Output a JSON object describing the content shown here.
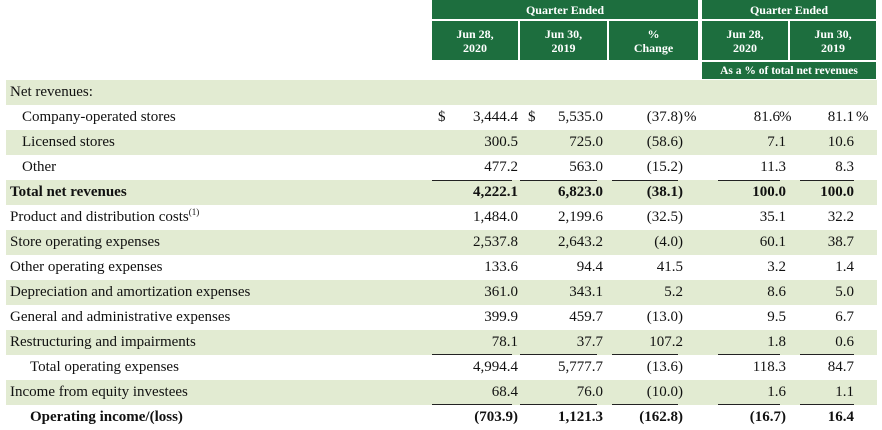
{
  "header": {
    "group1_title": "Quarter Ended",
    "group2_title": "Quarter Ended",
    "col1": [
      "Jun 28,",
      "2020"
    ],
    "col2": [
      "Jun 30,",
      "2019"
    ],
    "col3": [
      "%",
      "Change"
    ],
    "col4": [
      "Jun 28,",
      "2020"
    ],
    "col5": [
      "Jun 30,",
      "2019"
    ],
    "subheader": "As a % of total net revenues"
  },
  "rows": [
    {
      "label": "Net revenues:",
      "v1": "",
      "v2": "",
      "v3": "",
      "v4": "",
      "v5": ""
    },
    {
      "label": "Company-operated stores",
      "v1": "3,444.4",
      "v2": "5,535.0",
      "v3": "(37.8)",
      "v4": "81.6",
      "v5": "81.1",
      "dollar": "$",
      "pct": "%"
    },
    {
      "label": "Licensed stores",
      "v1": "300.5",
      "v2": "725.0",
      "v3": "(58.6)",
      "v4": "7.1",
      "v5": "10.6"
    },
    {
      "label": "Other",
      "v1": "477.2",
      "v2": "563.0",
      "v3": "(15.2)",
      "v4": "11.3",
      "v5": "8.3"
    },
    {
      "label": "Total net revenues",
      "v1": "4,222.1",
      "v2": "6,823.0",
      "v3": "(38.1)",
      "v4": "100.0",
      "v5": "100.0"
    },
    {
      "label": "Product and distribution costs",
      "sup": "(1)",
      "v1": "1,484.0",
      "v2": "2,199.6",
      "v3": "(32.5)",
      "v4": "35.1",
      "v5": "32.2"
    },
    {
      "label": "Store operating expenses",
      "v1": "2,537.8",
      "v2": "2,643.2",
      "v3": "(4.0)",
      "v4": "60.1",
      "v5": "38.7"
    },
    {
      "label": "Other operating expenses",
      "v1": "133.6",
      "v2": "94.4",
      "v3": "41.5",
      "v4": "3.2",
      "v5": "1.4"
    },
    {
      "label": "Depreciation and amortization expenses",
      "v1": "361.0",
      "v2": "343.1",
      "v3": "5.2",
      "v4": "8.6",
      "v5": "5.0"
    },
    {
      "label": "General and administrative expenses",
      "v1": "399.9",
      "v2": "459.7",
      "v3": "(13.0)",
      "v4": "9.5",
      "v5": "6.7"
    },
    {
      "label": "Restructuring and impairments",
      "v1": "78.1",
      "v2": "37.7",
      "v3": "107.2",
      "v4": "1.8",
      "v5": "0.6"
    },
    {
      "label": "Total operating expenses",
      "v1": "4,994.4",
      "v2": "5,777.7",
      "v3": "(13.6)",
      "v4": "118.3",
      "v5": "84.7"
    },
    {
      "label": "Income from equity investees",
      "v1": "68.4",
      "v2": "76.0",
      "v3": "(10.0)",
      "v4": "1.6",
      "v5": "1.1"
    },
    {
      "label": "Operating income/(loss)",
      "v1": "(703.9)",
      "v2": "1,121.3",
      "v3": "(162.8)",
      "v4": "(16.7)",
      "v5": "16.4"
    }
  ]
}
